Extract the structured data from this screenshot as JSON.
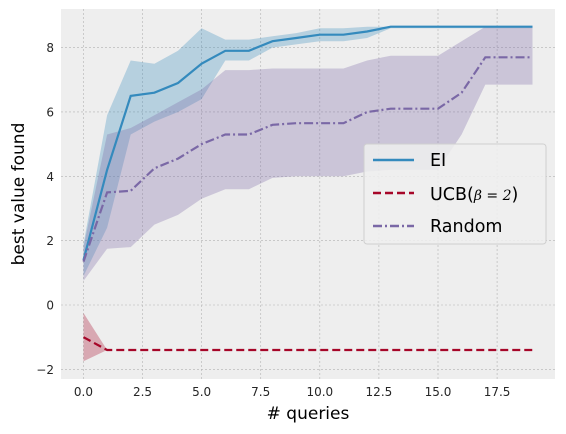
{
  "chart_data": {
    "type": "line",
    "xlabel": "# queries",
    "ylabel": "best value found",
    "xlim": [
      -0.95,
      19.95
    ],
    "ylim": [
      -2.3,
      9.2
    ],
    "x_ticks": [
      0.0,
      2.5,
      5.0,
      7.5,
      10.0,
      12.5,
      15.0,
      17.5
    ],
    "x_tick_labels": [
      "0.0",
      "2.5",
      "5.0",
      "7.5",
      "10.0",
      "12.5",
      "15.0",
      "17.5"
    ],
    "y_ticks": [
      -2,
      0,
      2,
      4,
      6,
      8
    ],
    "y_tick_labels": [
      "−2",
      "0",
      "2",
      "4",
      "6",
      "8"
    ],
    "grid": true,
    "legend_position": "center-right",
    "background": "#eeeeee",
    "grid_color": "#b2b2b2",
    "series": [
      {
        "name": "EI",
        "color": "#348abd",
        "dash": "solid",
        "x": [
          0,
          1,
          2,
          3,
          4,
          5,
          6,
          7,
          8,
          9,
          10,
          11,
          12,
          13,
          14,
          15,
          16,
          17,
          18,
          19
        ],
        "y": [
          1.4,
          4.2,
          6.5,
          6.6,
          6.9,
          7.5,
          7.9,
          7.9,
          8.2,
          8.3,
          8.4,
          8.4,
          8.5,
          8.65,
          8.65,
          8.65,
          8.65,
          8.65,
          8.65,
          8.65
        ],
        "lower": [
          0.9,
          2.4,
          5.3,
          5.7,
          6.0,
          6.4,
          7.6,
          7.6,
          8.0,
          8.1,
          8.2,
          8.2,
          8.3,
          8.6,
          8.6,
          8.6,
          8.6,
          8.6,
          8.6,
          8.6
        ],
        "upper": [
          1.9,
          5.9,
          7.6,
          7.5,
          7.9,
          8.6,
          8.25,
          8.25,
          8.35,
          8.45,
          8.6,
          8.6,
          8.65,
          8.65,
          8.65,
          8.65,
          8.65,
          8.65,
          8.65,
          8.65
        ]
      },
      {
        "name": "UCB($\\beta=2$)",
        "legend_label": "UCB(",
        "legend_label_math": "β = 2",
        "legend_label_close": ")",
        "color": "#a60628",
        "dash": "dashed",
        "x": [
          0,
          1,
          2,
          3,
          4,
          5,
          6,
          7,
          8,
          9,
          10,
          11,
          12,
          13,
          14,
          15,
          16,
          17,
          18,
          19
        ],
        "y": [
          -1.0,
          -1.4,
          -1.4,
          -1.4,
          -1.4,
          -1.4,
          -1.4,
          -1.4,
          -1.4,
          -1.4,
          -1.4,
          -1.4,
          -1.4,
          -1.4,
          -1.4,
          -1.4,
          -1.4,
          -1.4,
          -1.4,
          -1.4
        ],
        "lower": [
          -1.75,
          -1.4,
          -1.4,
          -1.4,
          -1.4,
          -1.4,
          -1.4,
          -1.4,
          -1.4,
          -1.4,
          -1.4,
          -1.4,
          -1.4,
          -1.4,
          -1.4,
          -1.4,
          -1.4,
          -1.4,
          -1.4,
          -1.4
        ],
        "upper": [
          -0.25,
          -1.4,
          -1.4,
          -1.4,
          -1.4,
          -1.4,
          -1.4,
          -1.4,
          -1.4,
          -1.4,
          -1.4,
          -1.4,
          -1.4,
          -1.4,
          -1.4,
          -1.4,
          -1.4,
          -1.4,
          -1.4,
          -1.4
        ]
      },
      {
        "name": "Random",
        "color": "#7a68a6",
        "dash": "dashdot",
        "x": [
          0,
          1,
          2,
          3,
          4,
          5,
          6,
          7,
          8,
          9,
          10,
          11,
          12,
          13,
          14,
          15,
          16,
          17,
          18,
          19
        ],
        "y": [
          1.35,
          3.5,
          3.55,
          4.25,
          4.55,
          5.0,
          5.3,
          5.3,
          5.6,
          5.65,
          5.65,
          5.65,
          6.0,
          6.1,
          6.1,
          6.1,
          6.6,
          7.7,
          7.7,
          7.7
        ],
        "lower": [
          0.75,
          1.75,
          1.8,
          2.5,
          2.8,
          3.3,
          3.6,
          3.6,
          3.95,
          4.0,
          4.0,
          4.0,
          4.15,
          4.2,
          4.2,
          4.2,
          5.3,
          6.85,
          6.85,
          6.85
        ],
        "upper": [
          1.8,
          5.3,
          5.5,
          5.9,
          6.3,
          6.7,
          7.3,
          7.3,
          7.35,
          7.35,
          7.35,
          7.35,
          7.6,
          7.75,
          7.75,
          7.75,
          8.2,
          8.65,
          8.65,
          8.65
        ]
      }
    ]
  }
}
